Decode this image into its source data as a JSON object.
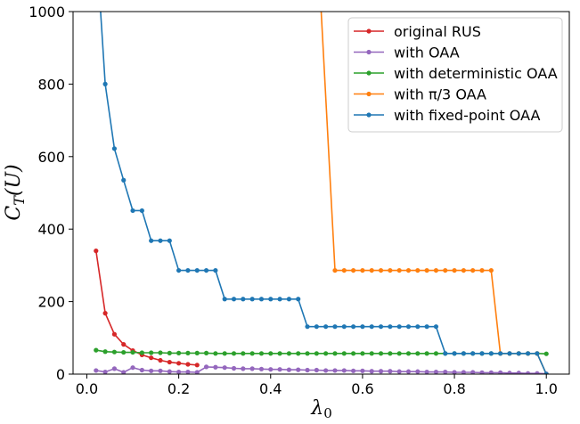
{
  "chart_data": {
    "type": "line",
    "xlabel": "λ₀",
    "ylabel": "C_T(U)",
    "xlim": [
      -0.03,
      1.05
    ],
    "ylim": [
      0,
      1000
    ],
    "x_ticks": [
      "0.0",
      "0.2",
      "0.4",
      "0.6",
      "0.8",
      "1.0"
    ],
    "x_tick_values": [
      0,
      0.2,
      0.4,
      0.6,
      0.8,
      1.0
    ],
    "y_ticks": [
      "0",
      "200",
      "400",
      "600",
      "800",
      "1000"
    ],
    "y_tick_values": [
      0,
      200,
      400,
      600,
      800,
      1000
    ],
    "grid": false,
    "legend_position": "top-right",
    "series": [
      {
        "name": "original RUS",
        "color": "#d62728",
        "x": [
          0.02,
          0.04,
          0.06,
          0.08,
          0.1,
          0.12,
          0.14,
          0.16,
          0.18,
          0.2,
          0.22,
          0.24
        ],
        "y": [
          340,
          168,
          110,
          82,
          65,
          53,
          45,
          38,
          33,
          30,
          27,
          25
        ]
      },
      {
        "name": "with OAA",
        "color": "#9467bd",
        "x": [
          0.02,
          0.04,
          0.06,
          0.08,
          0.1,
          0.12,
          0.14,
          0.16,
          0.18,
          0.2,
          0.22,
          0.24,
          0.26,
          0.28,
          0.3,
          0.32,
          0.34,
          0.36,
          0.38,
          0.4,
          0.42,
          0.44,
          0.46,
          0.48,
          0.5,
          0.52,
          0.54,
          0.56,
          0.58,
          0.6,
          0.62,
          0.64,
          0.66,
          0.68,
          0.7,
          0.72,
          0.74,
          0.76,
          0.78,
          0.8,
          0.82,
          0.84,
          0.86,
          0.88,
          0.9,
          0.92,
          0.94,
          0.96,
          0.98,
          1.0
        ],
        "y": [
          10,
          6,
          15,
          5,
          18,
          11,
          9,
          9,
          7,
          6,
          6,
          5,
          20,
          19,
          18,
          16,
          15,
          15,
          14,
          13,
          13,
          12,
          12,
          11,
          11,
          10,
          10,
          10,
          9,
          9,
          8,
          8,
          8,
          7,
          7,
          7,
          6,
          6,
          6,
          5,
          5,
          5,
          4,
          4,
          4,
          3,
          3,
          2,
          2,
          1
        ]
      },
      {
        "name": "with deterministic OAA",
        "color": "#2ca02c",
        "x": [
          0.02,
          0.04,
          0.06,
          0.08,
          0.1,
          0.12,
          0.14,
          0.16,
          0.18,
          0.2,
          0.22,
          0.24,
          0.26,
          0.28,
          0.3,
          0.32,
          0.34,
          0.36,
          0.38,
          0.4,
          0.42,
          0.44,
          0.46,
          0.48,
          0.5,
          0.52,
          0.54,
          0.56,
          0.58,
          0.6,
          0.62,
          0.64,
          0.66,
          0.68,
          0.7,
          0.72,
          0.74,
          0.76,
          0.78,
          0.8,
          0.82,
          0.84,
          0.86,
          0.88,
          0.9,
          0.92,
          0.94,
          0.96,
          0.98,
          1.0
        ],
        "y": [
          66,
          62,
          61,
          60,
          60,
          59,
          59,
          59,
          58,
          58,
          58,
          58,
          58,
          57,
          57,
          57,
          57,
          57,
          57,
          57,
          57,
          57,
          57,
          57,
          57,
          57,
          57,
          57,
          57,
          57,
          57,
          57,
          57,
          57,
          57,
          57,
          57,
          57,
          57,
          57,
          57,
          57,
          57,
          57,
          57,
          57,
          57,
          57,
          57,
          56
        ]
      },
      {
        "name": "with π/3 OAA",
        "color": "#ff7f0e",
        "x": [
          0.51,
          0.54,
          0.56,
          0.58,
          0.6,
          0.62,
          0.64,
          0.66,
          0.68,
          0.7,
          0.72,
          0.74,
          0.76,
          0.78,
          0.8,
          0.82,
          0.84,
          0.86,
          0.88,
          0.9,
          0.92,
          0.94,
          0.96,
          0.98,
          1.0
        ],
        "y": [
          1000,
          286,
          286,
          286,
          286,
          286,
          286,
          286,
          286,
          286,
          286,
          286,
          286,
          286,
          286,
          286,
          286,
          286,
          286,
          57,
          57,
          57,
          57,
          57,
          0
        ],
        "markers_from_index": 1
      },
      {
        "name": "with fixed-point OAA",
        "color": "#1f77b4",
        "x": [
          0.03,
          0.04,
          0.06,
          0.08,
          0.1,
          0.12,
          0.14,
          0.16,
          0.18,
          0.2,
          0.22,
          0.24,
          0.26,
          0.28,
          0.3,
          0.32,
          0.34,
          0.36,
          0.38,
          0.4,
          0.42,
          0.44,
          0.46,
          0.48,
          0.5,
          0.52,
          0.54,
          0.56,
          0.58,
          0.6,
          0.62,
          0.64,
          0.66,
          0.68,
          0.7,
          0.72,
          0.74,
          0.76,
          0.78,
          0.8,
          0.82,
          0.84,
          0.86,
          0.88,
          0.9,
          0.92,
          0.94,
          0.96,
          0.98,
          1.0
        ],
        "y": [
          1000,
          800,
          622,
          535,
          451,
          451,
          368,
          368,
          368,
          286,
          286,
          286,
          286,
          286,
          207,
          207,
          207,
          207,
          207,
          207,
          207,
          207,
          207,
          131,
          131,
          131,
          131,
          131,
          131,
          131,
          131,
          131,
          131,
          131,
          131,
          131,
          131,
          131,
          57,
          57,
          57,
          57,
          57,
          57,
          57,
          57,
          57,
          57,
          57,
          0
        ],
        "markers_from_index": 1
      }
    ]
  }
}
